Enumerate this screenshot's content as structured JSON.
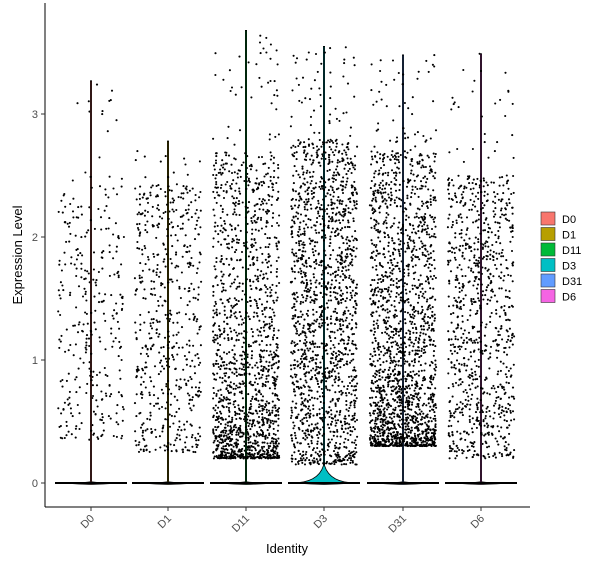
{
  "chart_data": {
    "type": "violin",
    "xlabel": "Identity",
    "ylabel": "Expression Level",
    "ylim": [
      -0.22,
      3.8
    ],
    "yticks": [
      0,
      1,
      2,
      3
    ],
    "grid": false,
    "legend_position": "right",
    "categories": [
      "D0",
      "D1",
      "D11",
      "D3",
      "D31",
      "D6"
    ],
    "series": [
      {
        "name": "D0",
        "color": "#F8766D",
        "max": 3.27,
        "points": 320,
        "nonzero_range": [
          0.35,
          2.5
        ],
        "zero_mode": true
      },
      {
        "name": "D1",
        "color": "#B79F00",
        "max": 2.78,
        "points": 560,
        "nonzero_range": [
          0.25,
          2.45
        ],
        "zero_mode": true
      },
      {
        "name": "D11",
        "color": "#00BA38",
        "max": 3.68,
        "points": 1500,
        "nonzero_range": [
          0.2,
          2.7
        ],
        "zero_mode": true
      },
      {
        "name": "D3",
        "color": "#00BFC4",
        "max": 3.55,
        "points": 1600,
        "nonzero_range": [
          0.15,
          2.8
        ],
        "zero_mode": true
      },
      {
        "name": "D31",
        "color": "#619CFF",
        "max": 3.48,
        "points": 1900,
        "nonzero_range": [
          0.3,
          2.7
        ],
        "zero_mode": true
      },
      {
        "name": "D6",
        "color": "#F564E3",
        "max": 3.49,
        "points": 900,
        "nonzero_range": [
          0.2,
          2.5
        ],
        "zero_mode": true
      }
    ]
  }
}
